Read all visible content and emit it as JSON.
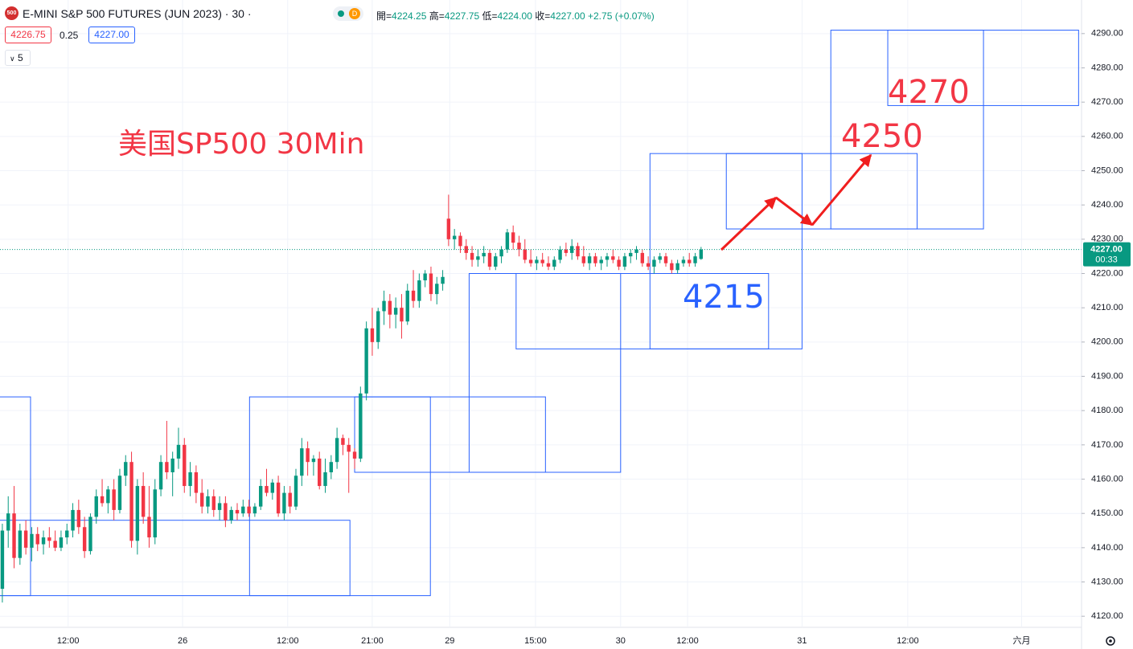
{
  "header": {
    "symbol_icon": "500",
    "title": "E-MINI S&P 500 FUTURES (JUN 2023) · 30 ·",
    "badge": "D",
    "ohlc": [
      {
        "label": "開=",
        "value": "4224.25"
      },
      {
        "label": "高=",
        "value": "4227.75"
      },
      {
        "label": "低=",
        "value": "4224.00"
      },
      {
        "label": "收=",
        "value": "4227.00"
      }
    ],
    "change": "+2.75 (+0.07%)",
    "bid": "4226.75",
    "spread": "0.25",
    "ask": "4227.00",
    "indicator_count": "5"
  },
  "chart_data": {
    "type": "candlestick",
    "annotations": [
      {
        "text": "美国SP500 30Min"
      },
      {
        "text": "4215"
      },
      {
        "text": "4250"
      },
      {
        "text": "4270"
      }
    ],
    "up_color": "#089981",
    "down_color": "#f23645",
    "box_color": "#2962ff",
    "grid": true,
    "xlim": [
      -0.4,
      183.8
    ],
    "ylim": [
      4117,
      4299.8
    ],
    "xticks": [
      {
        "value": 11.2,
        "label": "12:00"
      },
      {
        "value": 30.7,
        "label": "26"
      },
      {
        "value": 48.6,
        "label": "12:00"
      },
      {
        "value": 63,
        "label": "21:00"
      },
      {
        "value": 76.2,
        "label": "29"
      },
      {
        "value": 90.8,
        "label": "15:00"
      },
      {
        "value": 105.3,
        "label": "30"
      },
      {
        "value": 116.7,
        "label": "12:00"
      },
      {
        "value": 136.2,
        "label": "31"
      },
      {
        "value": 154.2,
        "label": "12:00"
      },
      {
        "value": 173.6,
        "label": "六月"
      }
    ],
    "yticks": [
      {
        "value": 4120,
        "label": "4120.00"
      },
      {
        "value": 4130,
        "label": "4130.00"
      },
      {
        "value": 4140,
        "label": "4140.00"
      },
      {
        "value": 4150,
        "label": "4150.00"
      },
      {
        "value": 4160,
        "label": "4160.00"
      },
      {
        "value": 4170,
        "label": "4170.00"
      },
      {
        "value": 4180,
        "label": "4180.00"
      },
      {
        "value": 4190,
        "label": "4190.00"
      },
      {
        "value": 4200,
        "label": "4200.00"
      },
      {
        "value": 4210,
        "label": "4210.00"
      },
      {
        "value": 4220,
        "label": "4220.00"
      },
      {
        "value": 4230,
        "label": "4230.00"
      },
      {
        "value": 4240,
        "label": "4240.00"
      },
      {
        "value": 4250,
        "label": "4250.00"
      },
      {
        "value": 4260,
        "label": "4260.00"
      },
      {
        "value": 4270,
        "label": "4270.00"
      },
      {
        "value": 4280,
        "label": "4280.00"
      },
      {
        "value": 4290,
        "label": "4290.00"
      }
    ],
    "last_price": {
      "value": 4227,
      "label": "4227.00",
      "countdown": "00:33"
    },
    "boxes": [
      {
        "x1": -2,
        "x2": 4.8,
        "low": 4126,
        "high": 4184
      },
      {
        "x1": -2,
        "x2": 59.2,
        "low": 4126,
        "high": 4148
      },
      {
        "x1": 42.1,
        "x2": 72.9,
        "low": 4126,
        "high": 4184
      },
      {
        "x1": 60,
        "x2": 92.5,
        "low": 4162,
        "high": 4184
      },
      {
        "x1": 79.5,
        "x2": 105.3,
        "low": 4162,
        "high": 4220
      },
      {
        "x1": 87.5,
        "x2": 130.5,
        "low": 4198,
        "high": 4220
      },
      {
        "x1": 110.3,
        "x2": 136.2,
        "low": 4198,
        "high": 4255
      },
      {
        "x1": 123.3,
        "x2": 155.8,
        "low": 4233,
        "high": 4255
      },
      {
        "x1": 141.1,
        "x2": 167.1,
        "low": 4233,
        "high": 4291
      },
      {
        "x1": 150.8,
        "x2": 183.3,
        "low": 4269,
        "high": 4291
      }
    ],
    "candles": {
      "open": [
        4128,
        4145,
        4150,
        4137,
        4145,
        4140,
        4144,
        4141,
        4143,
        4142,
        4140,
        4143,
        4145,
        4151,
        4146,
        4139,
        4149,
        4155,
        4153,
        4157,
        4151,
        4161,
        4165,
        4142,
        4158,
        4149,
        4143,
        4157,
        4165,
        4162,
        4166,
        4170,
        4158,
        4162,
        4156,
        4152,
        4155,
        4151,
        4153,
        4148,
        4151,
        4150,
        4152,
        4150,
        4152,
        4158,
        4156,
        4159,
        4150,
        4156,
        4152,
        4161,
        4169,
        4165,
        4166,
        4158,
        4162,
        4165,
        4172,
        4170,
        4168,
        4166,
        4185,
        4204,
        4200,
        4209,
        4212,
        4208,
        4210,
        4206,
        4215,
        4212,
        4218,
        4220,
        4214,
        4217,
        4236,
        4230,
        4231,
        4228,
        4226,
        4224,
        4225,
        4226,
        4222,
        4225,
        4227,
        4232,
        4229,
        4227,
        4224,
        4223,
        4224,
        4223,
        4222,
        4224,
        4227,
        4226,
        4228,
        4225,
        4223,
        4225,
        4223,
        4224,
        4225,
        4224,
        4222,
        4225,
        4226,
        4226,
        4223,
        4222,
        4224,
        4225,
        4223,
        4221,
        4223,
        4224,
        4223,
        4224.25
      ],
      "high": [
        4147,
        4155,
        4158,
        4147,
        4148,
        4146,
        4146,
        4145,
        4146,
        4145,
        4145,
        4147,
        4153,
        4154,
        4149,
        4150,
        4157,
        4160,
        4158,
        4160,
        4163,
        4167,
        4168,
        4160,
        4162,
        4158,
        4160,
        4167,
        4177,
        4168,
        4175,
        4172,
        4165,
        4164,
        4160,
        4157,
        4157,
        4155,
        4155,
        4152,
        4153,
        4154,
        4154,
        4153,
        4160,
        4163,
        4160,
        4161,
        4158,
        4158,
        4163,
        4172,
        4171,
        4167,
        4168,
        4166,
        4167,
        4175,
        4173,
        4172,
        4169,
        4187,
        4206,
        4210,
        4210,
        4215,
        4214,
        4213,
        4214,
        4217,
        4221,
        4220,
        4221,
        4222,
        4219,
        4221,
        4243,
        4233,
        4232,
        4230,
        4228,
        4227,
        4228,
        4227,
        4226,
        4228,
        4233,
        4234,
        4231,
        4230,
        4227,
        4225,
        4226,
        4225,
        4225,
        4228,
        4229,
        4230,
        4229,
        4228,
        4226,
        4226,
        4225,
        4226,
        4227,
        4225,
        4226,
        4227,
        4228,
        4227,
        4225,
        4225,
        4226,
        4226,
        4224,
        4224,
        4225,
        4226,
        4226,
        4227.75
      ],
      "low": [
        4124,
        4140,
        4134,
        4135,
        4138,
        4136,
        4139,
        4138,
        4140,
        4139,
        4139,
        4141,
        4143,
        4144,
        4137,
        4138,
        4147,
        4152,
        4150,
        4148,
        4150,
        4158,
        4140,
        4138,
        4147,
        4140,
        4141,
        4155,
        4160,
        4155,
        4163,
        4156,
        4155,
        4153,
        4150,
        4150,
        4149,
        4148,
        4146,
        4147,
        4148,
        4149,
        4149,
        4149,
        4151,
        4155,
        4154,
        4149,
        4148,
        4150,
        4151,
        4158,
        4161,
        4161,
        4157,
        4156,
        4160,
        4163,
        4167,
        4156,
        4163,
        4165,
        4183,
        4196,
        4198,
        4205,
        4204,
        4204,
        4201,
        4205,
        4210,
        4210,
        4216,
        4212,
        4211,
        4215,
        4228,
        4227,
        4226,
        4224,
        4222,
        4222,
        4223,
        4221,
        4221,
        4223,
        4226,
        4227,
        4225,
        4223,
        4222,
        4221,
        4222,
        4221,
        4221,
        4223,
        4225,
        4224,
        4224,
        4222,
        4221,
        4222,
        4221,
        4222,
        4223,
        4221,
        4221,
        4223,
        4224,
        4222,
        4221,
        4220,
        4223,
        4222,
        4220,
        4220,
        4222,
        4222,
        4222,
        4224
      ],
      "close": [
        4145,
        4150,
        4137,
        4145,
        4140,
        4144,
        4141,
        4143,
        4142,
        4140,
        4143,
        4145,
        4151,
        4146,
        4139,
        4149,
        4155,
        4153,
        4157,
        4151,
        4161,
        4165,
        4142,
        4158,
        4149,
        4143,
        4157,
        4165,
        4162,
        4166,
        4170,
        4158,
        4162,
        4156,
        4152,
        4155,
        4151,
        4153,
        4148,
        4151,
        4150,
        4152,
        4150,
        4152,
        4158,
        4156,
        4159,
        4150,
        4156,
        4152,
        4161,
        4169,
        4165,
        4166,
        4158,
        4162,
        4165,
        4172,
        4170,
        4168,
        4166,
        4185,
        4204,
        4200,
        4209,
        4212,
        4208,
        4210,
        4206,
        4215,
        4212,
        4218,
        4220,
        4214,
        4217,
        4219,
        4230,
        4231,
        4228,
        4226,
        4224,
        4225,
        4226,
        4222,
        4225,
        4227,
        4232,
        4229,
        4227,
        4224,
        4223,
        4224,
        4223,
        4222,
        4224,
        4227,
        4226,
        4228,
        4225,
        4223,
        4225,
        4223,
        4224,
        4225,
        4224,
        4222,
        4225,
        4226,
        4227,
        4223,
        4222,
        4224,
        4225,
        4223,
        4221,
        4223,
        4224,
        4223,
        4225,
        4227
      ]
    }
  }
}
